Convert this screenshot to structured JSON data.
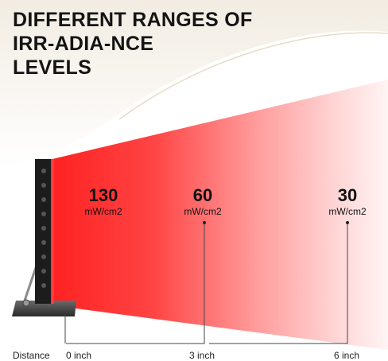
{
  "title": {
    "line1": "DIFFERENT RANGES OF",
    "line2": "IRR-ADIA-NCE",
    "line3": "LEVELS"
  },
  "levels": [
    {
      "value": "130",
      "unit": "mW/cm2"
    },
    {
      "value": "60",
      "unit": "mW/cm2"
    },
    {
      "value": "30",
      "unit": "mW/cm2"
    }
  ],
  "distance": {
    "label": "Distance",
    "marks": [
      "0 inch",
      "3 inch",
      "6 inch"
    ]
  },
  "colors": {
    "beam_red": "#ff2a2a",
    "panel_body": "#1c1c1c",
    "text": "#111111"
  }
}
